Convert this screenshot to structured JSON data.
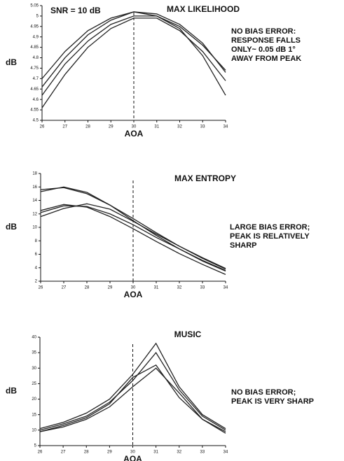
{
  "chart_data": [
    {
      "type": "line",
      "title": "MAX LIKELIHOOD",
      "annotation": "SNR = 10 dB",
      "notes": [
        "NO BIAS ERROR:",
        "RESPONSE FALLS",
        "ONLY~ 0.05 dB 1°",
        "AWAY FROM PEAK"
      ],
      "x_label": "AOA",
      "y_label": "dB",
      "x": [
        26,
        27,
        28,
        29,
        30,
        31,
        32,
        33,
        34
      ],
      "xlim": [
        26,
        34
      ],
      "xticks": [
        26,
        27,
        28,
        29,
        30,
        31,
        32,
        33,
        34
      ],
      "ylim": [
        4.5,
        5.05
      ],
      "yticks": [
        4.5,
        4.55,
        4.6,
        4.65,
        4.7,
        4.75,
        4.8,
        4.85,
        4.9,
        4.95,
        5,
        5.05
      ],
      "vline": 30,
      "series": [
        {
          "color": "#222222",
          "values": [
            4.56,
            4.72,
            4.85,
            4.94,
            4.99,
            4.99,
            4.93,
            4.83,
            4.69
          ]
        },
        {
          "color": "#222222",
          "values": [
            4.62,
            4.77,
            4.88,
            4.96,
            5.0,
            5.0,
            4.95,
            4.86,
            4.74
          ]
        },
        {
          "color": "#222222",
          "values": [
            4.66,
            4.8,
            4.91,
            4.98,
            5.02,
            5.01,
            4.96,
            4.87,
            4.73
          ]
        },
        {
          "color": "#222222",
          "values": [
            4.7,
            4.83,
            4.93,
            4.99,
            5.02,
            5.0,
            4.94,
            4.81,
            4.62
          ]
        }
      ]
    },
    {
      "type": "line",
      "title": "MAX ENTROPY",
      "notes": [
        "LARGE BIAS ERROR;",
        "PEAK IS RELATIVELY",
        "SHARP"
      ],
      "x_label": "AOA",
      "y_label": "dB",
      "x": [
        26,
        27,
        28,
        29,
        30,
        31,
        32,
        33,
        34
      ],
      "xlim": [
        26,
        34
      ],
      "xticks": [
        26,
        27,
        28,
        29,
        30,
        31,
        32,
        33,
        34
      ],
      "ylim": [
        2,
        18
      ],
      "yticks": [
        2,
        4,
        6,
        8,
        10,
        12,
        14,
        16,
        18
      ],
      "vline": 30,
      "series": [
        {
          "color": "#222222",
          "values": [
            15.3,
            16.0,
            15.2,
            13.3,
            11.0,
            8.8,
            6.8,
            5.0,
            3.5
          ]
        },
        {
          "color": "#222222",
          "values": [
            15.6,
            15.9,
            15.0,
            13.3,
            11.3,
            9.2,
            7.2,
            5.4,
            3.8
          ]
        },
        {
          "color": "#222222",
          "values": [
            12.2,
            13.2,
            13.1,
            12.0,
            10.4,
            8.5,
            6.8,
            5.1,
            3.6
          ]
        },
        {
          "color": "#222222",
          "values": [
            11.6,
            12.8,
            13.5,
            12.7,
            10.9,
            9.0,
            7.2,
            5.5,
            3.9
          ]
        },
        {
          "color": "#222222",
          "values": [
            12.5,
            13.4,
            13.0,
            11.6,
            9.8,
            7.9,
            6.1,
            4.5,
            3.0
          ]
        }
      ]
    },
    {
      "type": "line",
      "title": "MUSIC",
      "notes": [
        "NO BIAS ERROR;",
        "PEAK IS VERY SHARP"
      ],
      "x_label": "AOA",
      "y_label": "dB",
      "x": [
        26,
        27,
        28,
        29,
        30,
        31,
        32,
        33,
        34
      ],
      "xlim": [
        26,
        34
      ],
      "xticks": [
        26,
        27,
        28,
        29,
        30,
        31,
        32,
        33,
        34
      ],
      "ylim": [
        5,
        40
      ],
      "yticks": [
        5,
        10,
        15,
        20,
        25,
        30,
        35,
        40
      ],
      "vline": 30,
      "series": [
        {
          "color": "#222222",
          "values": [
            10.5,
            12.5,
            15.5,
            20,
            28,
            38,
            24,
            15,
            10.5
          ]
        },
        {
          "color": "#222222",
          "values": [
            10,
            12,
            14.5,
            19,
            26,
            35,
            23,
            14.5,
            10
          ]
        },
        {
          "color": "#222222",
          "values": [
            9.5,
            11.5,
            14,
            18.5,
            27,
            31,
            20.5,
            13.5,
            9.5
          ]
        },
        {
          "color": "#222222",
          "values": [
            9.5,
            11,
            13.5,
            17.5,
            24,
            30,
            22,
            13.5,
            9
          ]
        }
      ]
    }
  ]
}
